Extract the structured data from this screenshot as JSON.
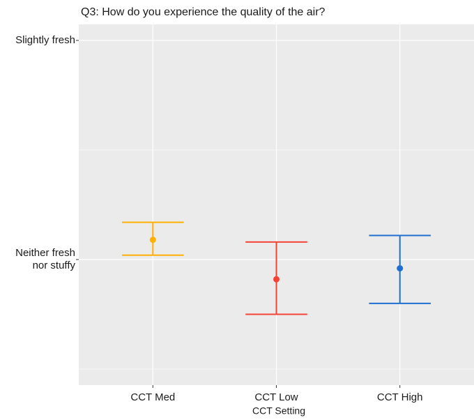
{
  "chart_data": {
    "type": "errorbar",
    "title": "Q3: How do you experience the quality of the air?",
    "x_label": "CCT Setting",
    "categories": [
      "CCT Med",
      "CCT Low",
      "CCT High"
    ],
    "values": [
      4.09,
      3.91,
      3.96
    ],
    "lower": [
      4.02,
      3.75,
      3.8
    ],
    "upper": [
      4.17,
      4.08,
      4.11
    ],
    "colors": [
      "#ffb000",
      "#f44336",
      "#1e6fd0"
    ],
    "ylim": [
      3.427,
      5.073
    ],
    "yticks": [
      {
        "value": 4,
        "label": "Neither fresh\nnor stuffy"
      },
      {
        "value": 5,
        "label": "Slightly fresh"
      }
    ],
    "minor_yticks": [
      3.5,
      4.5
    ],
    "grid": true
  }
}
